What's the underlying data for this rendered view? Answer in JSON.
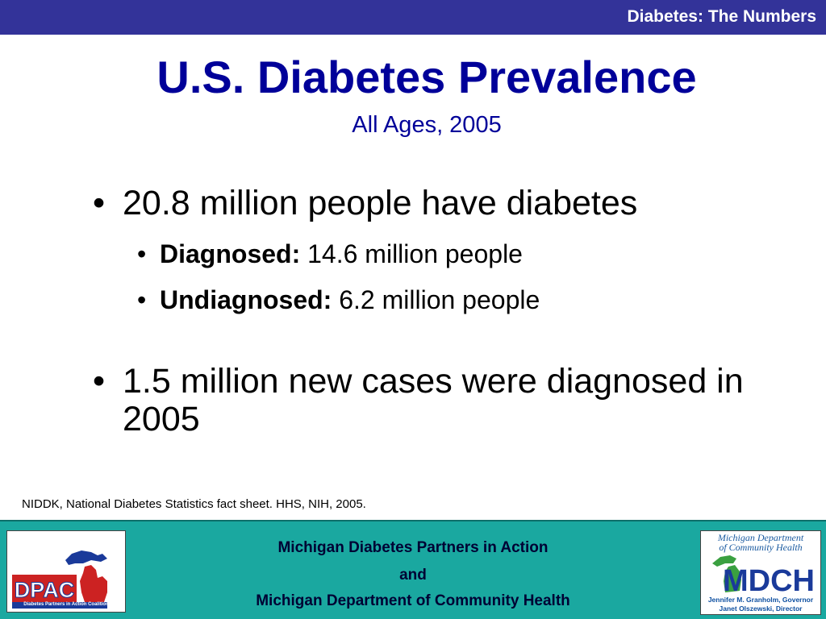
{
  "header": {
    "section_title": "Diabetes: The Numbers"
  },
  "slide": {
    "title": "U.S. Diabetes Prevalence",
    "subtitle": "All Ages, 2005",
    "bullets": [
      {
        "text": "20.8 million people have diabetes",
        "sub": [
          {
            "label": "Diagnosed:",
            "value": " 14.6 million people"
          },
          {
            "label": "Undiagnosed:",
            "value": " 6.2 million people"
          }
        ]
      },
      {
        "text": "1.5 million new cases were diagnosed in 2005"
      }
    ],
    "bullet_glyph": "•",
    "source": "NIDDK, National Diabetes Statistics fact sheet. HHS, NIH, 2005."
  },
  "footer": {
    "line1": "Michigan Diabetes Partners in Action",
    "line2": "and",
    "line3": "Michigan Department of Community Health",
    "left_logo": {
      "text": "DPAC",
      "tagline": "Diabetes Partners in Action Coalition"
    },
    "right_logo": {
      "title_line1": "Michigan Department",
      "title_line2": "of Community Health",
      "text": "MDCH",
      "governor": "Jennifer M. Granholm, Governor",
      "director": "Janet Olszewski, Director"
    }
  },
  "colors": {
    "header_bar": "#333399",
    "title": "#000099",
    "footer_bg": "#1aa8a0",
    "logo_red": "#cc2222",
    "logo_blue": "#1a3a9a",
    "logo_green": "#3aa040"
  }
}
